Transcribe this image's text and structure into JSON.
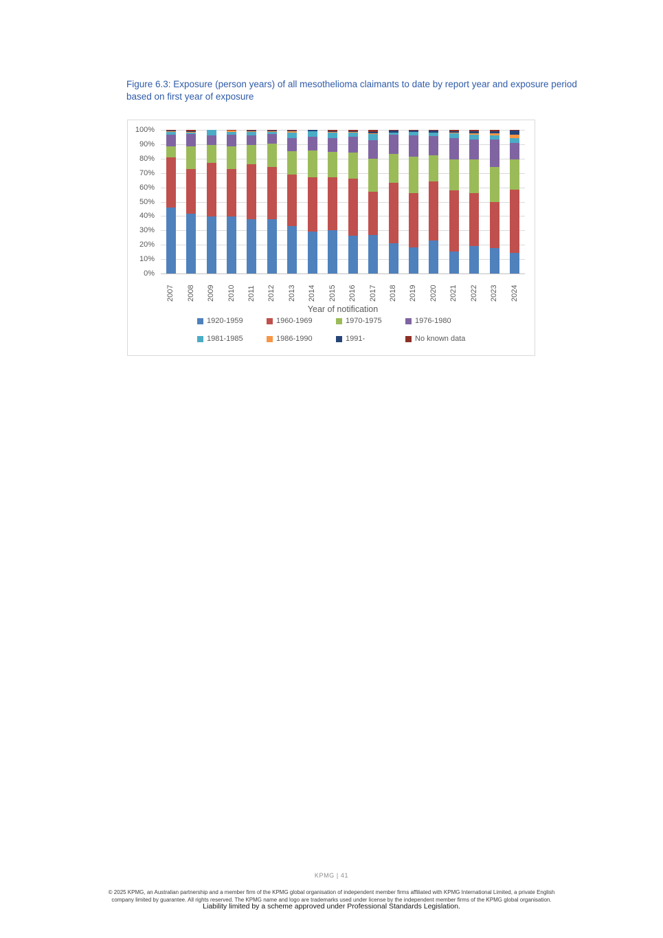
{
  "page": {
    "title": "Figure 6.3: Exposure (person years) of all mesothelioma claimants to date by report year and exposure period based on first year of exposure"
  },
  "chart_data": {
    "type": "bar",
    "subtype": "100%-stacked-column",
    "title": "",
    "xlabel": "Year of notification",
    "ylabel": "",
    "ylim": [
      0,
      100
    ],
    "grid": "horizontal",
    "legend_position": "bottom",
    "y_ticks": [
      "100%",
      "90%",
      "80%",
      "70%",
      "60%",
      "50%",
      "40%",
      "30%",
      "20%",
      "10%",
      "0%"
    ],
    "categories": [
      "2007",
      "2008",
      "2009",
      "2010",
      "2011",
      "2012",
      "2013",
      "2014",
      "2015",
      "2016",
      "2017",
      "2018",
      "2019",
      "2020",
      "2021",
      "2022",
      "2023",
      "2024"
    ],
    "series": [
      {
        "name": "1920-1959",
        "color": "#4F81BD",
        "values": [
          46,
          41.5,
          39.5,
          39.5,
          38,
          38,
          33,
          29,
          30,
          26.5,
          27,
          21,
          18,
          23,
          15.5,
          19,
          17.5,
          14.5
        ]
      },
      {
        "name": "1960-1969",
        "color": "#C0504D",
        "values": [
          35,
          31,
          37.5,
          33,
          38,
          36,
          36,
          38,
          37,
          39.5,
          30,
          42,
          38,
          41,
          42.5,
          37,
          32.5,
          44
        ]
      },
      {
        "name": "1970-1975",
        "color": "#9BBB59",
        "values": [
          7.5,
          16,
          12.5,
          16,
          13.5,
          16.5,
          16,
          18.5,
          17.5,
          18,
          23,
          20.5,
          25.5,
          18.5,
          21.5,
          23.5,
          24,
          21
        ]
      },
      {
        "name": "1976-1980",
        "color": "#8064A2",
        "values": [
          8,
          8.5,
          6.5,
          8.3,
          6.5,
          6.5,
          9.5,
          9.5,
          10,
          11,
          13,
          13,
          14.5,
          13,
          15,
          14,
          19.5,
          11.5
        ]
      },
      {
        "name": "1981-1985",
        "color": "#4BACC6",
        "values": [
          2,
          1.2,
          4,
          2,
          2.5,
          1.6,
          3.5,
          4.3,
          3.5,
          3,
          4,
          1.5,
          2.5,
          2.5,
          3,
          3,
          2.5,
          3.5
        ]
      },
      {
        "name": "1986-1990",
        "color": "#F79646",
        "values": [
          0.5,
          0.6,
          0,
          0.7,
          0.7,
          0.6,
          1,
          0,
          0.8,
          0.5,
          0.6,
          0.3,
          0.3,
          0.3,
          0.5,
          1,
          1.5,
          2
        ]
      },
      {
        "name": "1991-",
        "color": "#264478",
        "values": [
          0.4,
          0.4,
          0,
          0.2,
          0.3,
          0.3,
          0.4,
          0.7,
          0.5,
          0.5,
          1.2,
          1.2,
          0.8,
          1.2,
          1.2,
          1.7,
          1.8,
          3
        ]
      },
      {
        "name": "No known data",
        "color": "#8E2F26",
        "values": [
          0.6,
          0.8,
          0,
          0.3,
          0.5,
          0.5,
          0.6,
          0,
          0.7,
          1,
          1.2,
          0.5,
          0.4,
          0.5,
          0.8,
          0.8,
          0.7,
          0.5
        ]
      }
    ]
  },
  "footer": {
    "page_label": "KPMG | 41",
    "disclaimer_line1": "© 2025 KPMG, an Australian partnership and a member firm of the KPMG global organisation of independent member firms affiliated with KPMG International Limited, a private English",
    "disclaimer_line2": "company limited by guarantee. All rights reserved. The KPMG name and logo are trademarks used under license by the independent member firms of the KPMG global organisation.",
    "liability": "Liability limited by a scheme approved under Professional Standards Legislation."
  }
}
